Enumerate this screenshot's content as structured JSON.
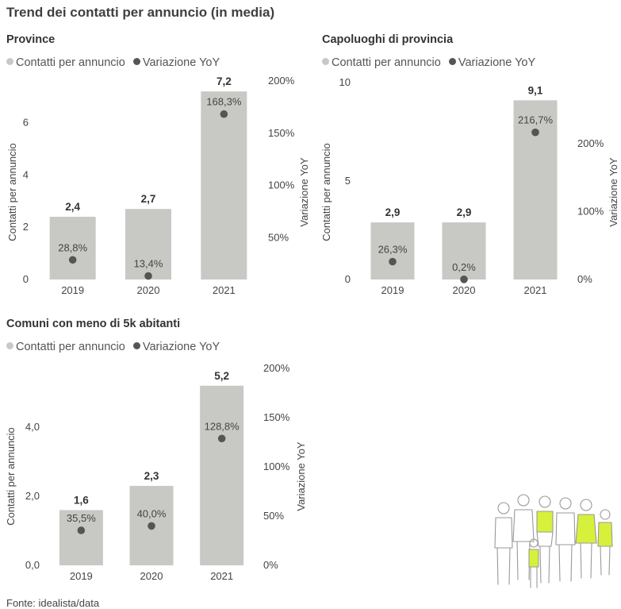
{
  "title": "Trend dei contatti per annuncio (in media)",
  "footer": "Fonte: idealista/data",
  "colors": {
    "bar": "#c8c8c4",
    "dot": "#555555",
    "axis_text": "#444444",
    "label": "#333333",
    "accent": "#d7f03c"
  },
  "charts": [
    {
      "id": "province",
      "title": "Province",
      "legend": [
        "Contatti per annuncio",
        "Variazione YoY"
      ],
      "chart_data": {
        "type": "bar",
        "categories": [
          "2019",
          "2020",
          "2021"
        ],
        "values": [
          2.4,
          2.7,
          7.2
        ],
        "value_labels": [
          "2,4",
          "2,7",
          "7,2"
        ],
        "yoy": [
          28.8,
          13.4,
          168.3
        ],
        "yoy_labels": [
          "28,8%",
          "13,4%",
          "168,3%"
        ],
        "ylabel": "Contatti per annuncio",
        "y2label": "Variazione YoY",
        "ylim": [
          0,
          7.6
        ],
        "y_ticks": [
          0,
          2,
          4,
          6
        ],
        "y_tick_labels": [
          "0",
          "2",
          "4",
          "6"
        ],
        "y2lim": [
          10,
          200
        ],
        "y2_ticks": [
          50,
          100,
          150,
          200
        ],
        "y2_tick_labels": [
          "50%",
          "100%",
          "150%",
          "200%"
        ]
      }
    },
    {
      "id": "capoluoghi",
      "title": "Capoluoghi di provincia",
      "legend": [
        "Contatti per annuncio",
        "Variazione YoY"
      ],
      "chart_data": {
        "type": "bar",
        "categories": [
          "2019",
          "2020",
          "2021"
        ],
        "values": [
          2.9,
          2.9,
          9.1
        ],
        "value_labels": [
          "2,9",
          "2,9",
          "9,1"
        ],
        "yoy": [
          26.3,
          0.2,
          216.7
        ],
        "yoy_labels": [
          "26,3%",
          "0,2%",
          "216,7%"
        ],
        "ylabel": "Contatti per annuncio",
        "y2label": "Variazione YoY",
        "ylim": [
          0,
          10
        ],
        "y_ticks": [
          0,
          5,
          10
        ],
        "y_tick_labels": [
          "0",
          "5",
          "10"
        ],
        "y2lim": [
          0,
          290
        ],
        "y2_ticks": [
          0,
          100,
          200
        ],
        "y2_tick_labels": [
          "0%",
          "100%",
          "200%"
        ]
      }
    },
    {
      "id": "comuni",
      "title": "Comuni con meno di 5k abitanti",
      "legend": [
        "Contatti per annuncio",
        "Variazione YoY"
      ],
      "chart_data": {
        "type": "bar",
        "categories": [
          "2019",
          "2020",
          "2021"
        ],
        "values": [
          1.6,
          2.3,
          5.2
        ],
        "value_labels": [
          "1,6",
          "2,3",
          "5,2"
        ],
        "yoy": [
          35.5,
          40.0,
          128.8
        ],
        "yoy_labels": [
          "35,5%",
          "40,0%",
          "128,8%"
        ],
        "ylabel": "Contatti per annuncio",
        "y2label": "Variazione YoY",
        "ylim": [
          0,
          5.7
        ],
        "y_ticks": [
          0,
          2,
          4
        ],
        "y_tick_labels": [
          "0,0",
          "2,0",
          "4,0"
        ],
        "y2lim": [
          0,
          200
        ],
        "y2_ticks": [
          0,
          50,
          100,
          150,
          200
        ],
        "y2_tick_labels": [
          "0%",
          "50%",
          "100%",
          "150%",
          "200%"
        ]
      }
    }
  ]
}
